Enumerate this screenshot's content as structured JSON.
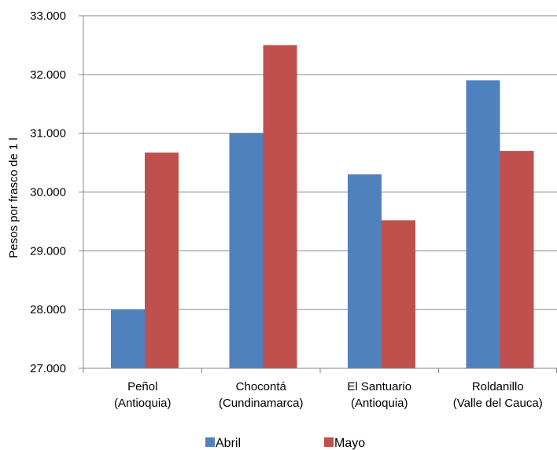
{
  "chart_data": {
    "type": "bar",
    "title": "",
    "xlabel": "",
    "ylabel": "Pesos por frasco de 1 l",
    "ylim": [
      27000,
      33000
    ],
    "ytick_step": 1000,
    "yticks": [
      "27.000",
      "28.000",
      "29.000",
      "30.000",
      "31.000",
      "32.000",
      "33.000"
    ],
    "grid": true,
    "legend_position": "bottom",
    "categories": [
      [
        "Peñol",
        "(Antioquia)"
      ],
      [
        "Chocontá",
        "(Cundinamarca)"
      ],
      [
        "El Santuario",
        "(Antioquia)"
      ],
      [
        "Roldanillo",
        "(Valle del Cauca)"
      ]
    ],
    "series": [
      {
        "name": "Abril",
        "color": "#4f81bd",
        "values": [
          28000,
          31000,
          30300,
          31900
        ]
      },
      {
        "name": "Mayo",
        "color": "#c0504d",
        "values": [
          30670,
          32500,
          29520,
          30700
        ]
      }
    ]
  }
}
